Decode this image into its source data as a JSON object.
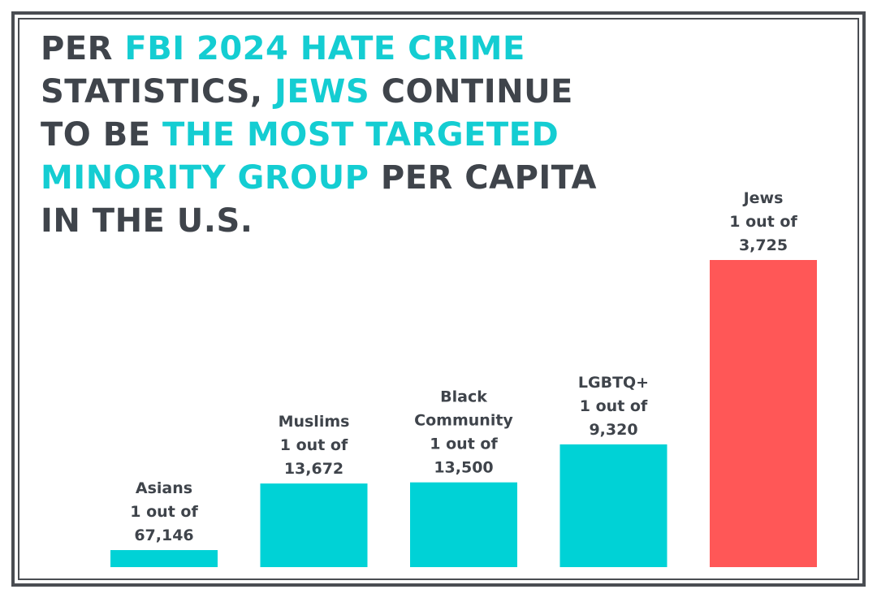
{
  "headline": [
    {
      "text": "PER ",
      "highlight": false
    },
    {
      "text": "FBI 2024 HATE CRIME",
      "highlight": true
    },
    {
      "text": " STATISTICS, ",
      "highlight": false
    },
    {
      "text": "JEWS",
      "highlight": true
    },
    {
      "text": " CONTINUE TO BE ",
      "highlight": false
    },
    {
      "text": "THE MOST TARGETED MINORITY GROUP",
      "highlight": true
    },
    {
      "text": " PER CAPITA IN THE U.S.",
      "highlight": false
    }
  ],
  "colors": {
    "text": "#3f444b",
    "highlight": "#14cdd2",
    "bar_default": "#00d2d6",
    "bar_emphasis": "#ff5757",
    "frame": "#4a4d52"
  },
  "chart_data": {
    "type": "bar",
    "categories": [
      "Asians",
      "Muslims",
      "Black Community",
      "LGBTQ+",
      "Jews"
    ],
    "label_lines": [
      [
        "Asians",
        "1 out of",
        "67,146"
      ],
      [
        "Muslims",
        "1 out of",
        "13,672"
      ],
      [
        "Black",
        "Community",
        "1 out of",
        "13,500"
      ],
      [
        "LGBTQ+",
        "1 out of",
        "9,320"
      ],
      [
        "Jews",
        "1 out of",
        "3,725"
      ]
    ],
    "one_in_n": [
      67146,
      13672,
      13500,
      9320,
      3725
    ],
    "values": [
      1.49e-05,
      7.31e-05,
      7.41e-05,
      0.0001073,
      0.0002685
    ],
    "highlight_index": 4,
    "title": "",
    "xlabel": "",
    "ylabel": "",
    "grid": false,
    "legend": "none"
  }
}
